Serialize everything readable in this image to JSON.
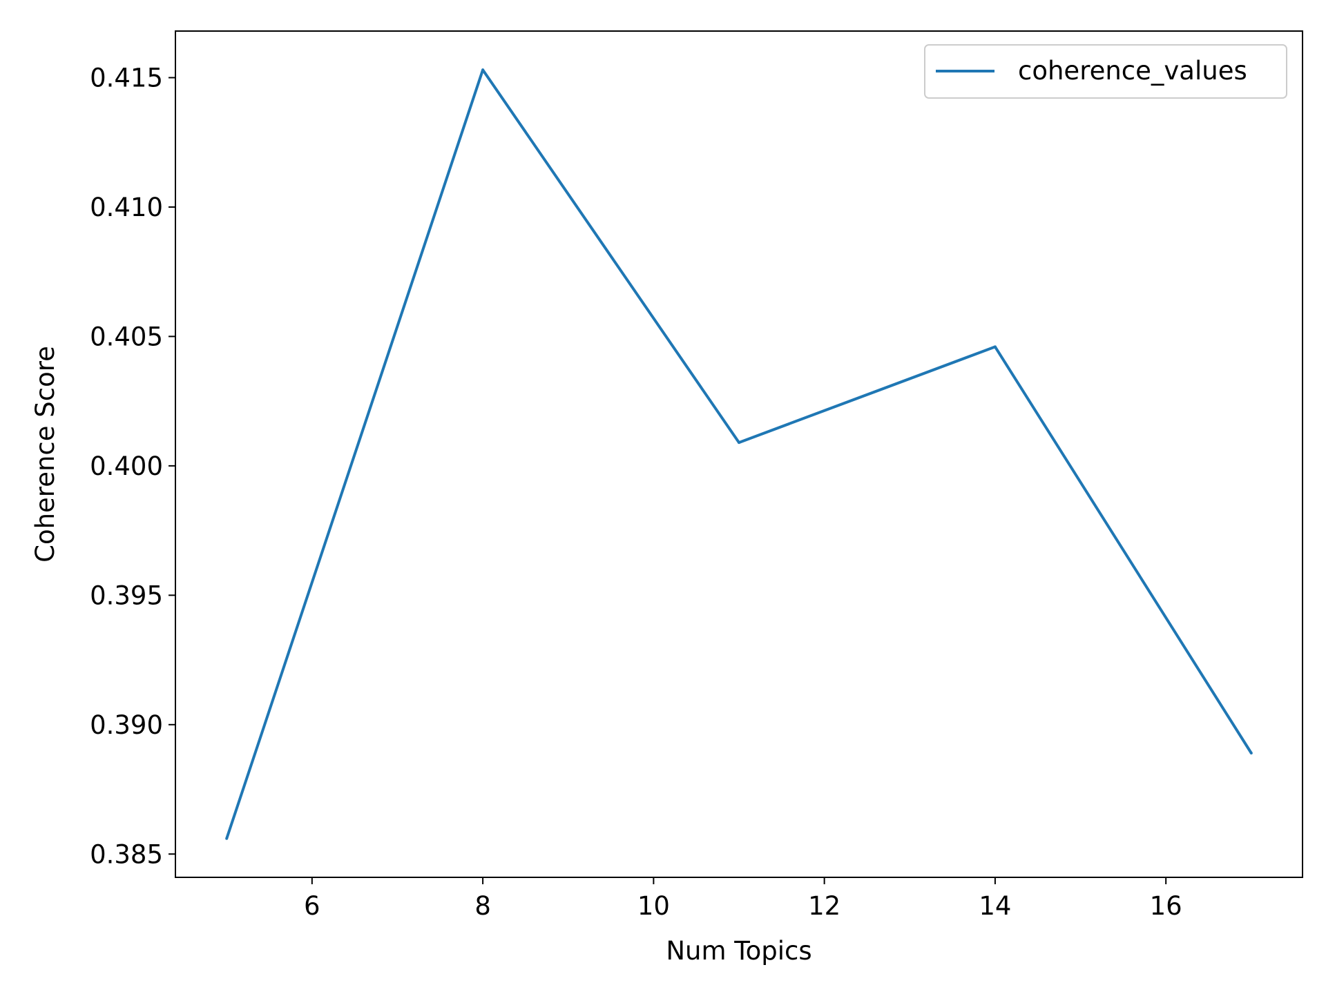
{
  "chart_data": {
    "type": "line",
    "xlabel": "Num Topics",
    "ylabel": "Coherence Score",
    "xlim": [
      4.4,
      17.6
    ],
    "ylim": [
      0.3841,
      0.4168
    ],
    "xticks": [
      6,
      8,
      10,
      12,
      14,
      16
    ],
    "yticks": [
      0.385,
      0.39,
      0.395,
      0.4,
      0.405,
      0.41,
      0.415
    ],
    "xtick_labels": [
      "6",
      "8",
      "10",
      "12",
      "14",
      "16"
    ],
    "ytick_labels": [
      "0.385",
      "0.390",
      "0.395",
      "0.400",
      "0.405",
      "0.410",
      "0.415"
    ],
    "grid": false,
    "legend_position": "top-right",
    "series": [
      {
        "name": "coherence_values",
        "color": "#1f77b4",
        "x": [
          5,
          8,
          11,
          14,
          17
        ],
        "y": [
          0.3856,
          0.4153,
          0.4009,
          0.4046,
          0.3889
        ]
      }
    ]
  }
}
